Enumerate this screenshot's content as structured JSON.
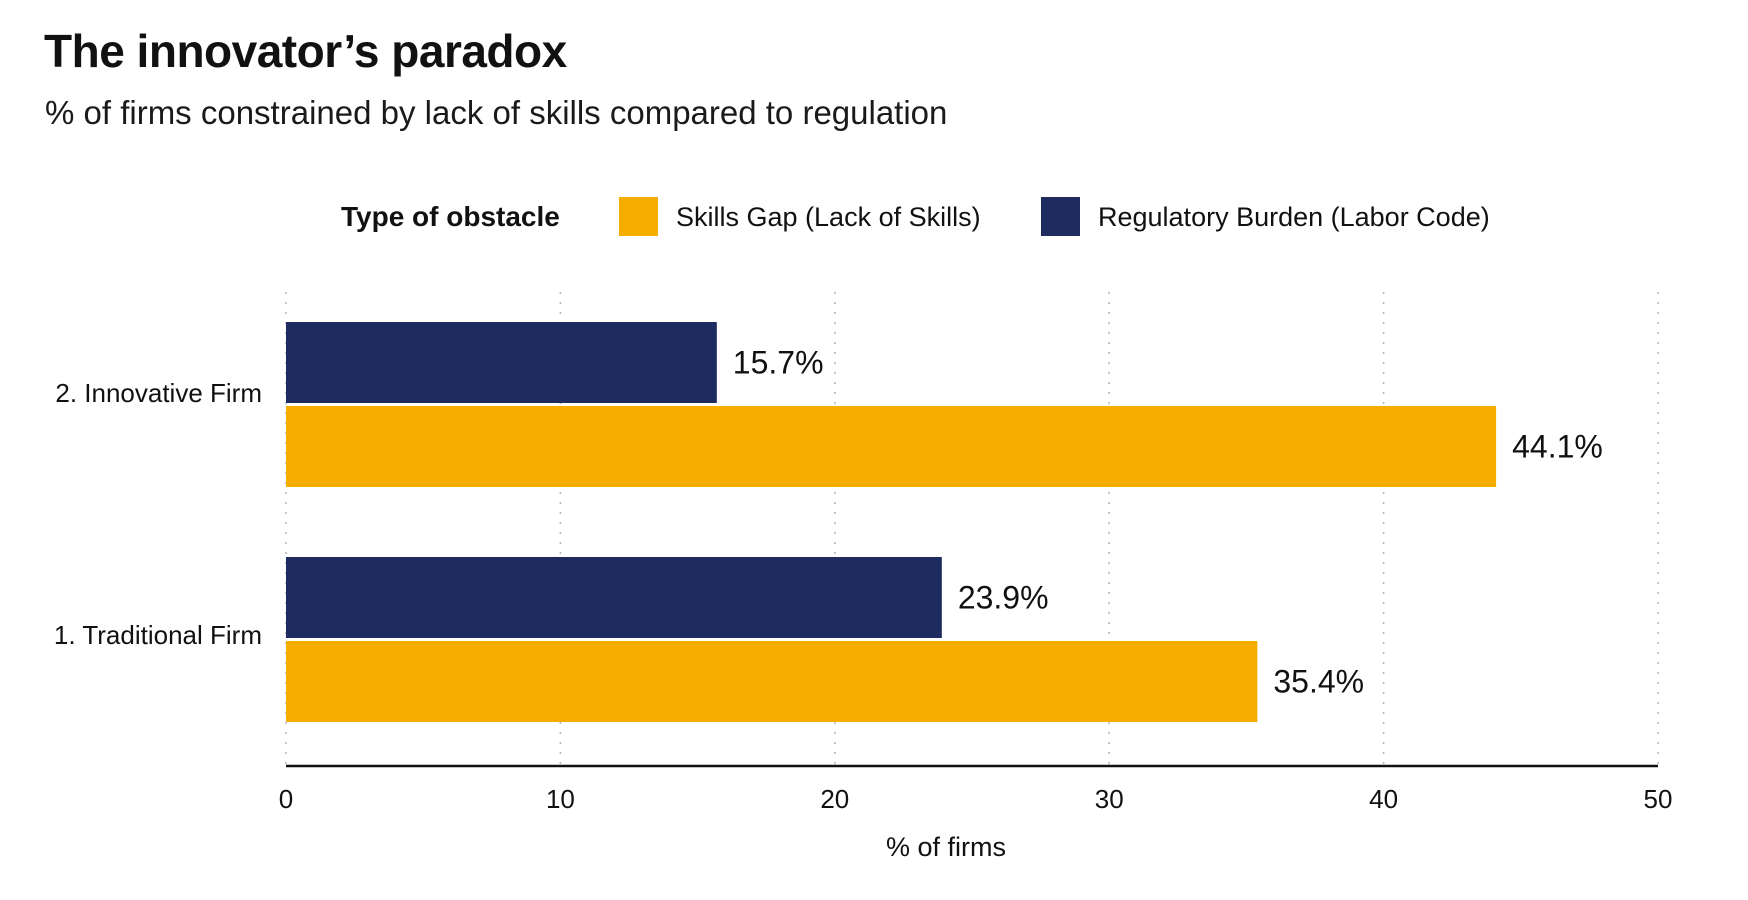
{
  "title": "The innovator’s paradox",
  "subtitle": "% of firms constrained by lack of skills compared to regulation",
  "chart_data": {
    "type": "bar",
    "orientation": "horizontal",
    "categories": [
      "2. Innovative Firm",
      "1. Traditional Firm"
    ],
    "series": [
      {
        "name": "Regulatory Burden (Labor Code)",
        "color": "#1e2b5e",
        "values": [
          15.7,
          23.9
        ],
        "labels": [
          "15.7%",
          "23.9%"
        ]
      },
      {
        "name": "Skills Gap (Lack of Skills)",
        "color": "#f5ad00",
        "values": [
          44.1,
          35.4
        ],
        "labels": [
          "44.1%",
          "35.4%"
        ]
      }
    ],
    "legend": {
      "title": "Type of obstacle",
      "position": "top",
      "items": [
        {
          "label": "Skills Gap (Lack of Skills)",
          "color": "#f5ad00"
        },
        {
          "label": "Regulatory Burden (Labor Code)",
          "color": "#1e2b5e"
        }
      ]
    },
    "xlabel": "% of firms",
    "xlim": [
      0,
      50
    ],
    "xticks": [
      0,
      10,
      20,
      30,
      40,
      50
    ],
    "grid": "vertical dotted"
  }
}
